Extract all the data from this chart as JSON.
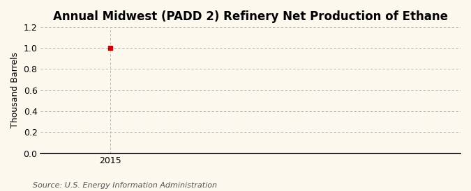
{
  "title": "Annual Midwest (PADD 2) Refinery Net Production of Ethane",
  "ylabel": "Thousand Barrels",
  "source_text": "Source: U.S. Energy Information Administration",
  "x_data": [
    2015
  ],
  "y_data": [
    1.0
  ],
  "point_color": "#cc0000",
  "ylim": [
    0.0,
    1.2
  ],
  "yticks": [
    0.0,
    0.2,
    0.4,
    0.6,
    0.8,
    1.0,
    1.2
  ],
  "xlim": [
    2014.7,
    2016.5
  ],
  "xticks": [
    2015
  ],
  "background_color": "#fdf8ee",
  "grid_color": "#b0b0b0",
  "vline_color": "#b0b0b0",
  "title_fontsize": 12,
  "label_fontsize": 9,
  "tick_fontsize": 9,
  "source_fontsize": 8
}
